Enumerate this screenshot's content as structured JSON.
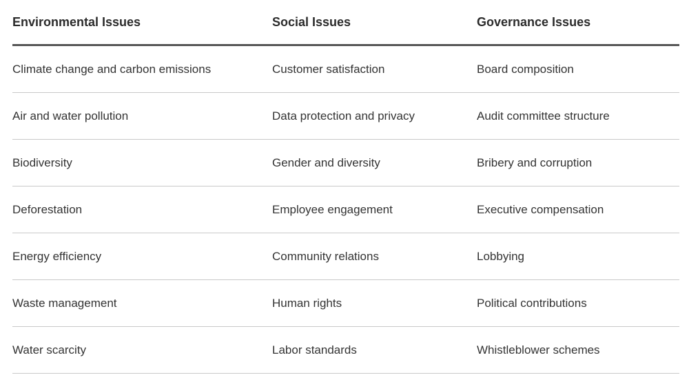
{
  "table": {
    "headers": [
      "Environmental Issues",
      "Social Issues",
      "Governance Issues"
    ],
    "rows": [
      [
        "Climate change and carbon emissions",
        "Customer satisfaction",
        "Board composition"
      ],
      [
        "Air and water pollution",
        "Data protection and privacy",
        "Audit committee structure"
      ],
      [
        "Biodiversity",
        "Gender and diversity",
        "Bribery and corruption"
      ],
      [
        "Deforestation",
        "Employee engagement",
        "Executive compensation"
      ],
      [
        "Energy efficiency",
        "Community relations",
        "Lobbying"
      ],
      [
        "Waste management",
        "Human rights",
        "Political contributions"
      ],
      [
        "Water scarcity",
        "Labor standards",
        "Whistleblower schemes"
      ]
    ]
  }
}
